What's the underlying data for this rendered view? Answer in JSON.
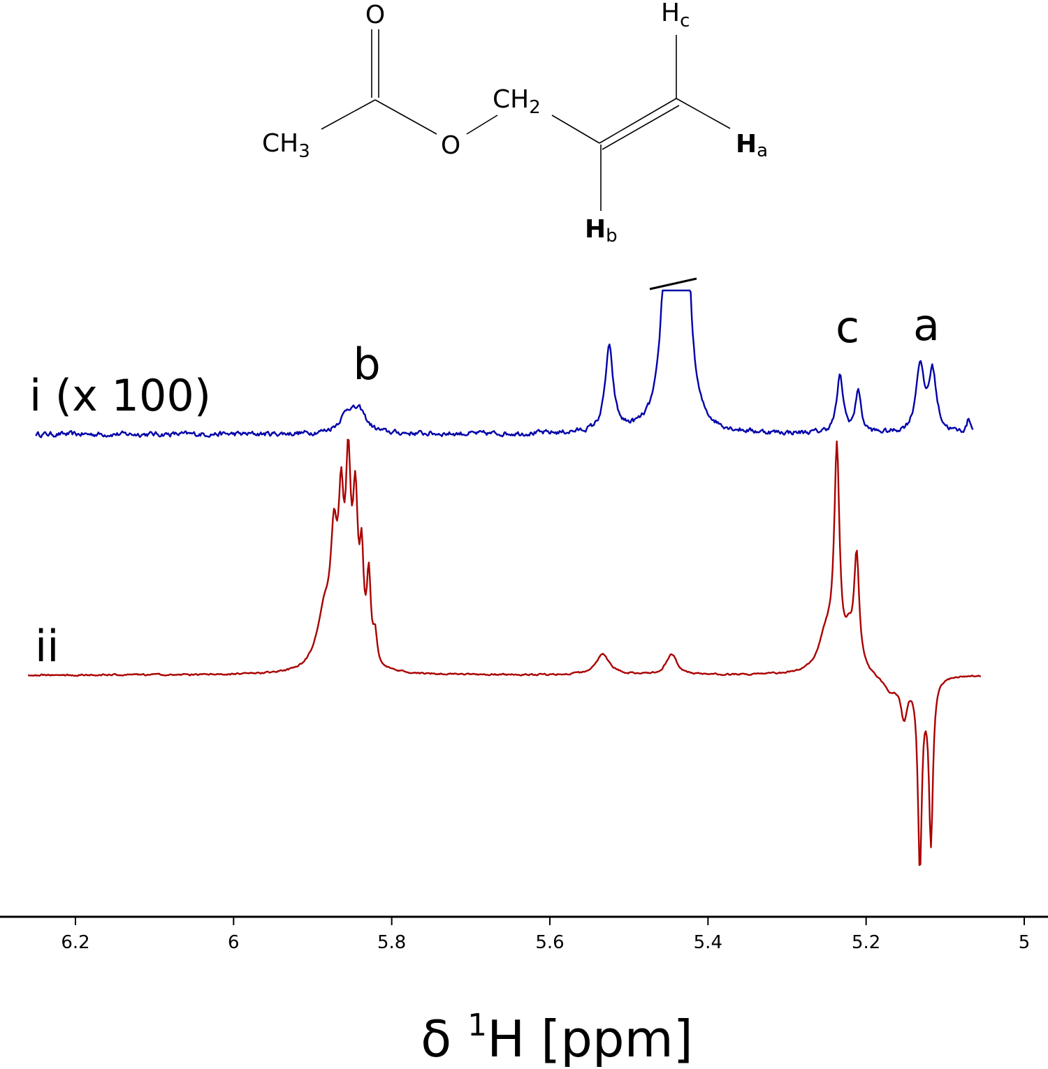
{
  "structure": {
    "atoms": {
      "o_carbonyl": "O",
      "ch3_main": "CH",
      "ch3_sub": "3",
      "o_ester": "O",
      "ch2_main": "CH",
      "ch2_sub": "2",
      "hc_main": "H",
      "hc_sub": "c",
      "ha_main": "H",
      "ha_sub": "a",
      "hb_main": "H",
      "hb_sub": "b"
    }
  },
  "chart_data": {
    "type": "line",
    "title": "",
    "xlabel_symbol": "δ ",
    "xlabel_sup": "1",
    "xlabel_rest": "H [ppm]",
    "ylabel": "",
    "xlim": [
      6.26,
      5.0
    ],
    "x_reversed": true,
    "y_axis_shown": false,
    "grid": false,
    "x_ticks": [
      6.2,
      6.0,
      5.8,
      5.6,
      5.4,
      5.2,
      5.0
    ],
    "x_tick_labels": [
      "6.2",
      "6",
      "5.8",
      "5.6",
      "5.4",
      "5.2",
      "5"
    ],
    "series": [
      {
        "name": "i (x 100)",
        "color": "#0000aa",
        "x_range": [
          6.25,
          5.065
        ],
        "baseline": 0,
        "noise": 6,
        "peaks": [
          {
            "x": 5.855,
            "height": 30,
            "width": 0.012
          },
          {
            "x": 5.84,
            "height": 25,
            "width": 0.01
          },
          {
            "x": 5.525,
            "height": 120,
            "width": 0.006
          },
          {
            "x": 5.45,
            "height": 420,
            "width": 0.007
          },
          {
            "x": 5.43,
            "height": 420,
            "width": 0.007
          },
          {
            "x": 5.233,
            "height": 80,
            "width": 0.005
          },
          {
            "x": 5.21,
            "height": 62,
            "width": 0.004
          },
          {
            "x": 5.132,
            "height": 95,
            "width": 0.006
          },
          {
            "x": 5.116,
            "height": 85,
            "width": 0.006
          },
          {
            "x": 5.07,
            "height": 20,
            "width": 0.003
          }
        ],
        "truncated": true
      },
      {
        "name": "ii",
        "color": "#aa0000",
        "x_range": [
          6.26,
          5.055
        ],
        "baseline": 0,
        "noise": 2,
        "peaks": [
          {
            "x": 5.885,
            "height": 80,
            "width": 0.012
          },
          {
            "x": 5.873,
            "height": 150,
            "width": 0.005
          },
          {
            "x": 5.864,
            "height": 190,
            "width": 0.004
          },
          {
            "x": 5.855,
            "height": 250,
            "width": 0.004
          },
          {
            "x": 5.846,
            "height": 210,
            "width": 0.004
          },
          {
            "x": 5.838,
            "height": 130,
            "width": 0.003
          },
          {
            "x": 5.829,
            "height": 120,
            "width": 0.003
          },
          {
            "x": 5.821,
            "height": 40,
            "width": 0.003
          },
          {
            "x": 5.533,
            "height": 30,
            "width": 0.01
          },
          {
            "x": 5.446,
            "height": 30,
            "width": 0.008
          },
          {
            "x": 5.237,
            "height": 300,
            "width": 0.004
          },
          {
            "x": 5.25,
            "height": 55,
            "width": 0.012
          },
          {
            "x": 5.212,
            "height": 160,
            "width": 0.004
          },
          {
            "x": 5.222,
            "height": 40,
            "width": 0.006
          },
          {
            "x": 5.152,
            "height": -55,
            "width": 0.005
          },
          {
            "x": 5.132,
            "height": -270,
            "width": 0.003
          },
          {
            "x": 5.118,
            "height": -235,
            "width": 0.003
          },
          {
            "x": 5.17,
            "height": -22,
            "width": 0.012
          }
        ]
      }
    ],
    "annotations": [
      "b",
      "c",
      "a"
    ]
  }
}
